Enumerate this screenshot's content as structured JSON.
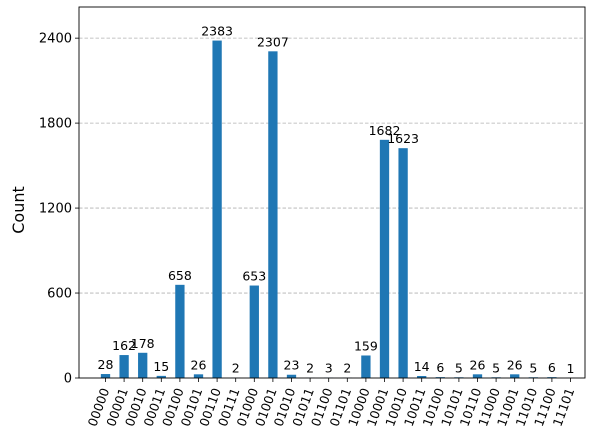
{
  "chart_data": {
    "type": "bar",
    "categories": [
      "00000",
      "00001",
      "00010",
      "00011",
      "00100",
      "00101",
      "00110",
      "00111",
      "01000",
      "01001",
      "01010",
      "01011",
      "01100",
      "01101",
      "10000",
      "10001",
      "10010",
      "10011",
      "10100",
      "10101",
      "10110",
      "11000",
      "11001",
      "11010",
      "11100",
      "11101"
    ],
    "values": [
      28,
      162,
      178,
      15,
      658,
      26,
      2383,
      2,
      653,
      2307,
      23,
      2,
      3,
      2,
      159,
      1682,
      1623,
      14,
      6,
      5,
      26,
      5,
      26,
      5,
      6,
      1
    ],
    "data_labels": [
      "28",
      "162",
      "178",
      "15",
      "658",
      "26",
      "2383",
      "2",
      "653",
      "2307",
      "23",
      "2",
      "3",
      "2",
      "159",
      "1682",
      "1623",
      "14",
      "6",
      "5",
      "26",
      "5",
      "26",
      "5",
      "6",
      "1"
    ],
    "ylabel": "Count",
    "xlabel": "",
    "ylim": [
      0,
      2620
    ],
    "yticks": [
      0,
      600,
      1200,
      1800,
      2400
    ],
    "ytick_labels": [
      "0",
      "600",
      "1200",
      "1800",
      "2400"
    ],
    "grid": "y-dashed",
    "bar_color": "#1f77b4",
    "grid_color": "#b0b0b0"
  }
}
